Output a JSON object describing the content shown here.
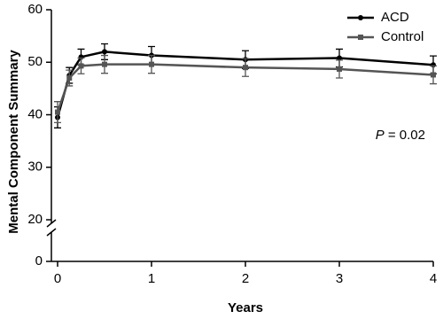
{
  "chart_data": {
    "type": "line",
    "x_label": "Years",
    "y_label": "Mental Component Summary",
    "annotation": "P = 0.02",
    "x": [
      0,
      0.125,
      0.25,
      0.5,
      1,
      2,
      3,
      4
    ],
    "series": [
      {
        "name": "ACD",
        "color": "#000000",
        "marker": "circle",
        "values": [
          39.5,
          47.5,
          51,
          52,
          51.3,
          50.5,
          50.8,
          49.5
        ],
        "errors": [
          2,
          1.5,
          1.5,
          1.5,
          1.7,
          1.7,
          1.7,
          1.7
        ]
      },
      {
        "name": "Control",
        "color": "#555555",
        "marker": "square",
        "values": [
          40.5,
          47,
          49.3,
          49.6,
          49.6,
          49,
          48.7,
          47.6
        ],
        "errors": [
          2,
          1.5,
          1.5,
          1.7,
          1.7,
          1.7,
          1.7,
          1.7
        ]
      }
    ],
    "xlim": [
      0,
      4
    ],
    "xticks": [
      0,
      1,
      2,
      3,
      4
    ],
    "ylim": [
      0,
      60
    ],
    "y_break": [
      0,
      20
    ],
    "yticks": [
      0,
      20,
      30,
      40,
      50,
      60
    ],
    "legend": "top-right"
  }
}
